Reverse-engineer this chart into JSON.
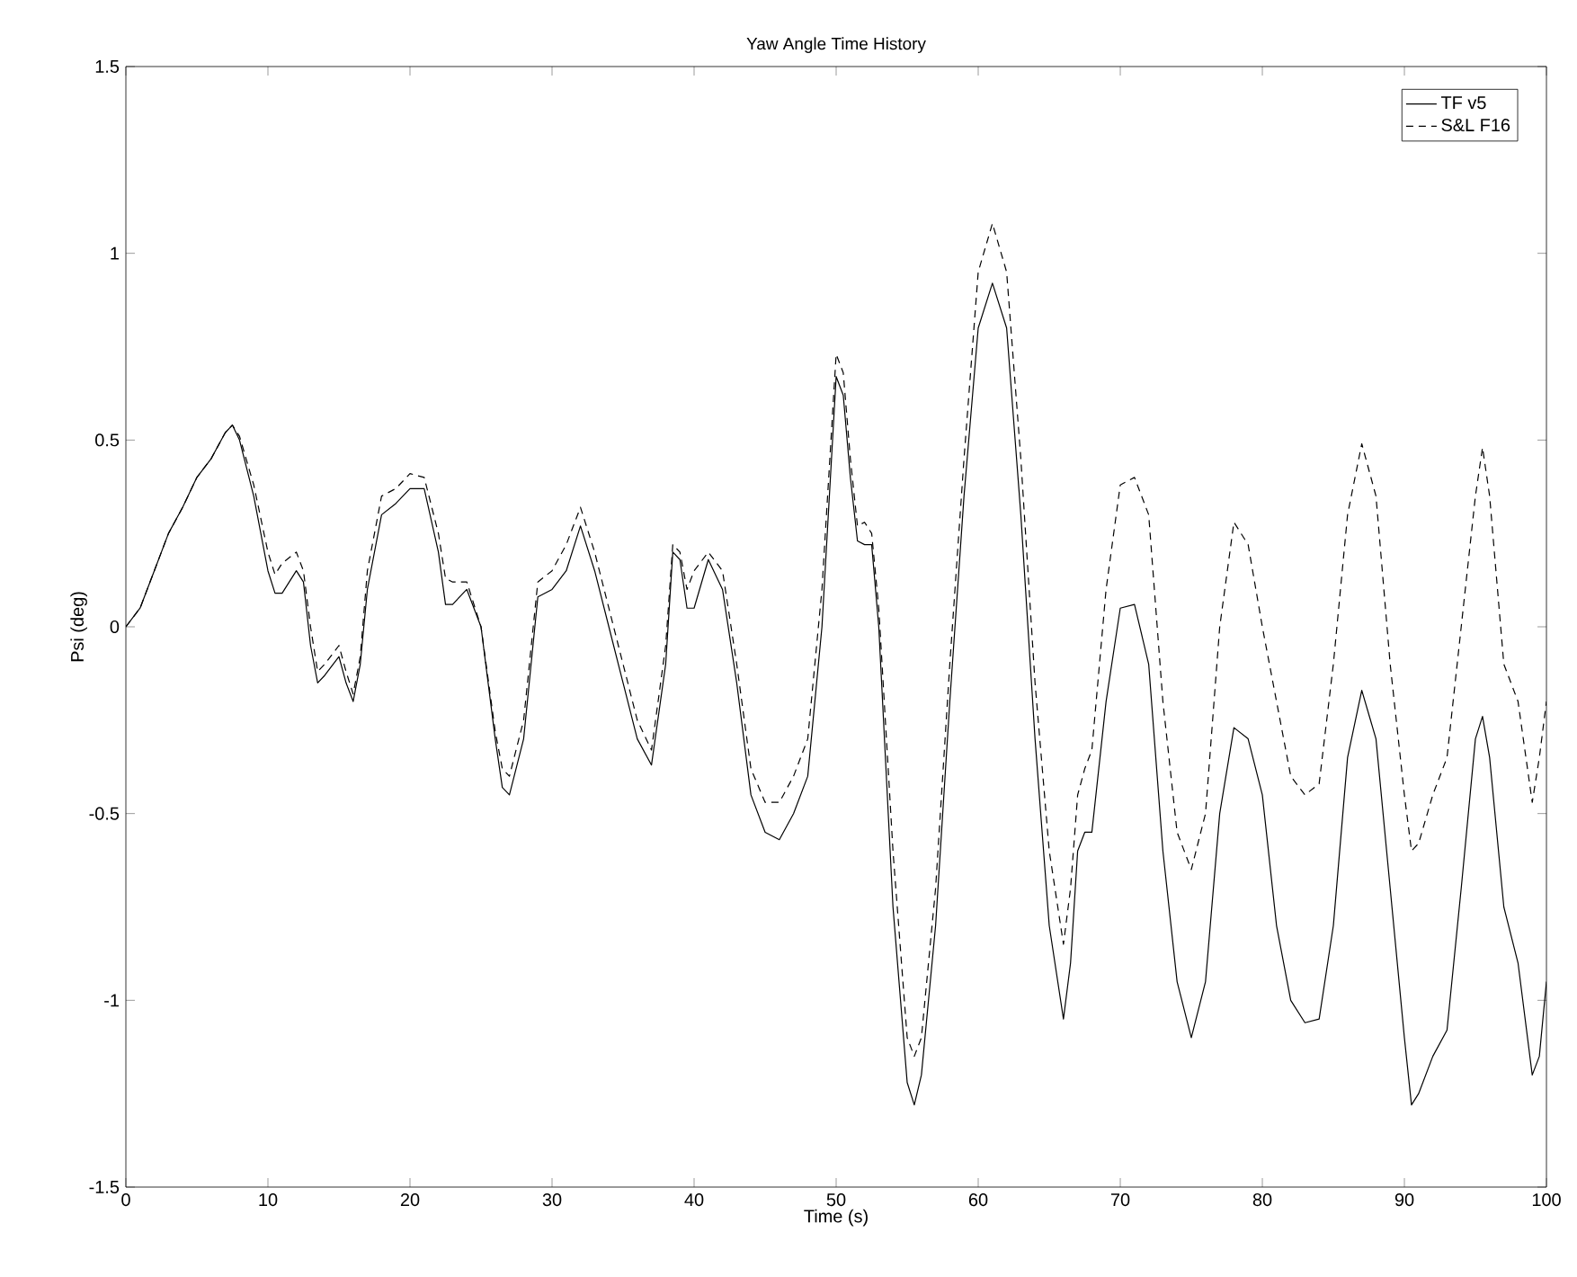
{
  "chart_data": {
    "type": "line",
    "title": "Yaw Angle Time History",
    "xlabel": "Time (s)",
    "ylabel": "Psi (deg)",
    "x": [
      0,
      1,
      2,
      3,
      4,
      5,
      6,
      7,
      7.5,
      8,
      9,
      10,
      10.5,
      11,
      12,
      12.5,
      13,
      13.5,
      14,
      15,
      15.5,
      16,
      16.5,
      17,
      18,
      19,
      20,
      21,
      22,
      22.5,
      23,
      24,
      25,
      26,
      26.5,
      27,
      28,
      29,
      30,
      31,
      32,
      33,
      34,
      35,
      36,
      37,
      38,
      38.5,
      39,
      39.5,
      40,
      41,
      42,
      43,
      44,
      45,
      46,
      47,
      48,
      49,
      50,
      50.5,
      51,
      51.5,
      52,
      52.5,
      53,
      54,
      55,
      55.5,
      56,
      57,
      58,
      59,
      60,
      61,
      62,
      63,
      64,
      65,
      66,
      66.5,
      67,
      67.5,
      68,
      69,
      70,
      71,
      72,
      73,
      74,
      75,
      76,
      77,
      78,
      79,
      80,
      81,
      82,
      83,
      84,
      85,
      86,
      87,
      88,
      89,
      90,
      90.5,
      91,
      92,
      93,
      94,
      95,
      95.5,
      96,
      97,
      98,
      99,
      99.5,
      100
    ],
    "series": [
      {
        "name": "TF v5",
        "color": "#000000",
        "line_style": "solid",
        "values": [
          0,
          0.05,
          0.15,
          0.25,
          0.32,
          0.4,
          0.45,
          0.52,
          0.54,
          0.5,
          0.35,
          0.15,
          0.09,
          0.09,
          0.15,
          0.12,
          -0.05,
          -0.15,
          -0.13,
          -0.08,
          -0.15,
          -0.2,
          -0.1,
          0.1,
          0.3,
          0.33,
          0.37,
          0.37,
          0.2,
          0.06,
          0.06,
          0.1,
          0.0,
          -0.3,
          -0.43,
          -0.45,
          -0.3,
          0.08,
          0.1,
          0.15,
          0.27,
          0.15,
          0.0,
          -0.15,
          -0.3,
          -0.37,
          -0.1,
          0.2,
          0.18,
          0.05,
          0.05,
          0.18,
          0.1,
          -0.15,
          -0.45,
          -0.55,
          -0.57,
          -0.5,
          -0.4,
          0.0,
          0.67,
          0.62,
          0.4,
          0.23,
          0.22,
          0.22,
          0.0,
          -0.75,
          -1.22,
          -1.28,
          -1.2,
          -0.8,
          -0.2,
          0.35,
          0.8,
          0.92,
          0.8,
          0.3,
          -0.3,
          -0.8,
          -1.05,
          -0.9,
          -0.6,
          -0.55,
          -0.55,
          -0.2,
          0.05,
          0.06,
          -0.1,
          -0.6,
          -0.95,
          -1.1,
          -0.95,
          -0.5,
          -0.27,
          -0.3,
          -0.45,
          -0.8,
          -1.0,
          -1.06,
          -1.05,
          -0.8,
          -0.35,
          -0.17,
          -0.3,
          -0.7,
          -1.1,
          -1.28,
          -1.25,
          -1.15,
          -1.08,
          -0.7,
          -0.3,
          -0.24,
          -0.35,
          -0.75,
          -0.9,
          -1.2,
          -1.15,
          -0.95
        ]
      },
      {
        "name": "S&L F16",
        "color": "#000000",
        "line_style": "dashed",
        "values": [
          0,
          0.05,
          0.15,
          0.25,
          0.32,
          0.4,
          0.45,
          0.52,
          0.54,
          0.51,
          0.38,
          0.2,
          0.14,
          0.17,
          0.2,
          0.15,
          0.0,
          -0.12,
          -0.1,
          -0.05,
          -0.12,
          -0.18,
          -0.08,
          0.15,
          0.35,
          0.37,
          0.41,
          0.4,
          0.25,
          0.13,
          0.12,
          0.12,
          0.0,
          -0.28,
          -0.38,
          -0.4,
          -0.25,
          0.12,
          0.15,
          0.22,
          0.32,
          0.2,
          0.05,
          -0.1,
          -0.25,
          -0.33,
          -0.05,
          0.22,
          0.2,
          0.1,
          0.15,
          0.2,
          0.15,
          -0.1,
          -0.38,
          -0.47,
          -0.47,
          -0.4,
          -0.3,
          0.1,
          0.73,
          0.68,
          0.45,
          0.27,
          0.28,
          0.25,
          0.05,
          -0.6,
          -1.1,
          -1.15,
          -1.1,
          -0.7,
          -0.1,
          0.45,
          0.95,
          1.08,
          0.95,
          0.45,
          -0.15,
          -0.6,
          -0.85,
          -0.7,
          -0.45,
          -0.38,
          -0.33,
          0.1,
          0.38,
          0.4,
          0.3,
          -0.2,
          -0.55,
          -0.65,
          -0.5,
          0.0,
          0.28,
          0.22,
          0.0,
          -0.2,
          -0.4,
          -0.45,
          -0.42,
          -0.1,
          0.3,
          0.49,
          0.35,
          -0.1,
          -0.45,
          -0.6,
          -0.58,
          -0.45,
          -0.35,
          0.0,
          0.35,
          0.48,
          0.35,
          -0.1,
          -0.2,
          -0.47,
          -0.35,
          -0.2
        ]
      }
    ],
    "xlim": [
      0,
      100
    ],
    "xticks": [
      0,
      10,
      20,
      30,
      40,
      50,
      60,
      70,
      80,
      90,
      100
    ],
    "ylim": [
      -1.5,
      1.5
    ],
    "yticks": [
      -1.5,
      -1,
      -0.5,
      0,
      0.5,
      1,
      1.5
    ],
    "grid": false,
    "legend": "top right",
    "marker": "none"
  }
}
